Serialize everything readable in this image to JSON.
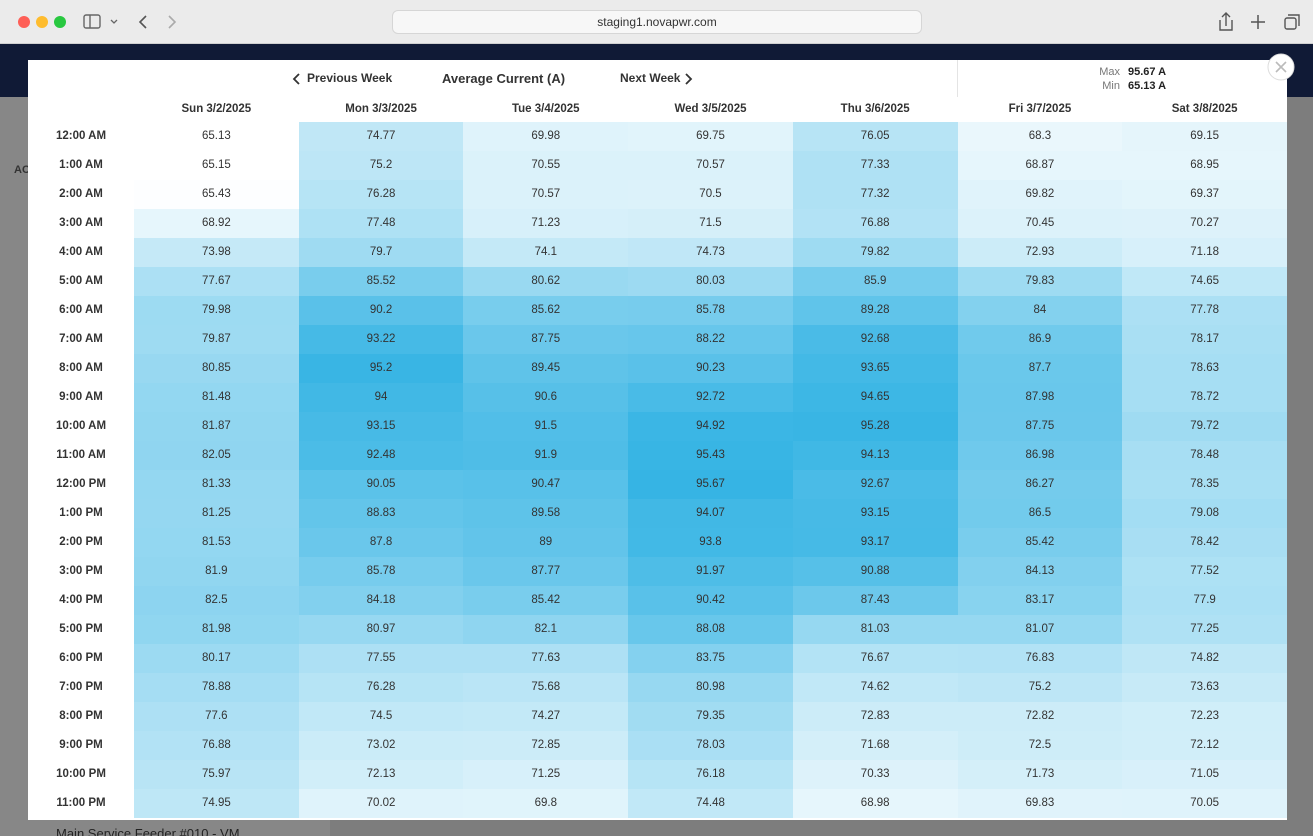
{
  "browser": {
    "url": "staging1.novapwr.com"
  },
  "background": {
    "side_label": "AC",
    "footer_text": "Main Service Feeder #010 - VM"
  },
  "modal": {
    "prev": "Previous Week",
    "title": "Average Current (A)",
    "next": "Next Week",
    "max_label": "Max",
    "max": "95.67 A",
    "min_label": "Min",
    "min": "65.13 A",
    "days": [
      "Sun 3/2/2025",
      "Mon 3/3/2025",
      "Tue 3/4/2025",
      "Wed 3/5/2025",
      "Thu 3/6/2025",
      "Fri 3/7/2025",
      "Sat 3/8/2025"
    ],
    "hours": [
      "12:00 AM",
      "1:00 AM",
      "2:00 AM",
      "3:00 AM",
      "4:00 AM",
      "5:00 AM",
      "6:00 AM",
      "7:00 AM",
      "8:00 AM",
      "9:00 AM",
      "10:00 AM",
      "11:00 AM",
      "12:00 PM",
      "1:00 PM",
      "2:00 PM",
      "3:00 PM",
      "4:00 PM",
      "5:00 PM",
      "6:00 PM",
      "7:00 PM",
      "8:00 PM",
      "9:00 PM",
      "10:00 PM",
      "11:00 PM"
    ],
    "rows": [
      [
        65.13,
        74.77,
        69.98,
        69.75,
        76.05,
        68.3,
        69.15
      ],
      [
        65.15,
        75.2,
        70.55,
        70.57,
        77.33,
        68.87,
        68.95
      ],
      [
        65.43,
        76.28,
        70.57,
        70.5,
        77.32,
        69.82,
        69.37
      ],
      [
        68.92,
        77.48,
        71.23,
        71.5,
        76.88,
        70.45,
        70.27
      ],
      [
        73.98,
        79.7,
        74.1,
        74.73,
        79.82,
        72.93,
        71.18
      ],
      [
        77.67,
        85.52,
        80.62,
        80.03,
        85.9,
        79.83,
        74.65
      ],
      [
        79.98,
        90.2,
        85.62,
        85.78,
        89.28,
        84,
        77.78
      ],
      [
        79.87,
        93.22,
        87.75,
        88.22,
        92.68,
        86.9,
        78.17
      ],
      [
        80.85,
        95.2,
        89.45,
        90.23,
        93.65,
        87.7,
        78.63
      ],
      [
        81.48,
        94,
        90.6,
        92.72,
        94.65,
        87.98,
        78.72
      ],
      [
        81.87,
        93.15,
        91.5,
        94.92,
        95.28,
        87.75,
        79.72
      ],
      [
        82.05,
        92.48,
        91.9,
        95.43,
        94.13,
        86.98,
        78.48
      ],
      [
        81.33,
        90.05,
        90.47,
        95.67,
        92.67,
        86.27,
        78.35
      ],
      [
        81.25,
        88.83,
        89.58,
        94.07,
        93.15,
        86.5,
        79.08
      ],
      [
        81.53,
        87.8,
        89,
        93.8,
        93.17,
        85.42,
        78.42
      ],
      [
        81.9,
        85.78,
        87.77,
        91.97,
        90.88,
        84.13,
        77.52
      ],
      [
        82.5,
        84.18,
        85.42,
        90.42,
        87.43,
        83.17,
        77.9
      ],
      [
        81.98,
        80.97,
        82.1,
        88.08,
        81.03,
        81.07,
        77.25
      ],
      [
        80.17,
        77.55,
        77.63,
        83.75,
        76.67,
        76.83,
        74.82
      ],
      [
        78.88,
        76.28,
        75.68,
        80.98,
        74.62,
        75.2,
        73.63
      ],
      [
        77.6,
        74.5,
        74.27,
        79.35,
        72.83,
        72.82,
        72.23
      ],
      [
        76.88,
        73.02,
        72.85,
        78.03,
        71.68,
        72.5,
        72.12
      ],
      [
        75.97,
        72.13,
        71.25,
        76.18,
        70.33,
        71.73,
        71.05
      ],
      [
        74.95,
        70.02,
        69.8,
        74.48,
        68.98,
        69.83,
        70.05
      ]
    ]
  }
}
